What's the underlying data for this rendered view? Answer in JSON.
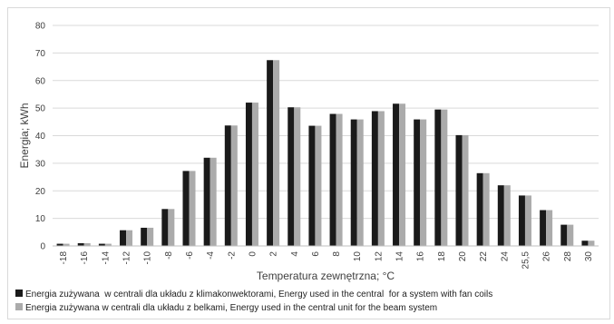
{
  "chart_data": {
    "type": "bar",
    "xlabel": "Temperatura zewnętrzna; °C",
    "ylabel": "Energia; kWh",
    "ylim": [
      0,
      80
    ],
    "yticks": [
      0,
      10,
      20,
      30,
      40,
      50,
      60,
      70,
      80
    ],
    "grid": true,
    "legend_position": "bottom",
    "categories": [
      "-18",
      "-16",
      "-14",
      "-12",
      "-10",
      "-8",
      "-6",
      "-4",
      "-2",
      "0",
      "2",
      "4",
      "6",
      "8",
      "10",
      "12",
      "14",
      "16",
      "18",
      "20",
      "22",
      "24",
      "25,5",
      "26",
      "28",
      "30"
    ],
    "series": [
      {
        "name": "Energia zużywana  w centrali dla układu z klimakonwektorami, Energy used in the central  for a system with fan coils",
        "color": "#1a1a1a",
        "values": [
          0.8,
          1.0,
          0.8,
          5.7,
          6.6,
          13.4,
          27.2,
          32.0,
          43.7,
          52.0,
          67.4,
          50.3,
          43.6,
          47.9,
          45.9,
          48.9,
          51.6,
          45.9,
          49.5,
          40.2,
          26.4,
          22.0,
          18.3,
          13.0,
          7.7,
          1.9
        ]
      },
      {
        "name": "Energia zużywana w centrali dla układu z belkami, Energy used in the central unit for the beam system",
        "color": "#ababab",
        "values": [
          0.8,
          1.0,
          0.8,
          5.7,
          6.6,
          13.4,
          27.2,
          32.0,
          43.7,
          52.0,
          67.4,
          50.3,
          43.6,
          47.9,
          45.9,
          48.9,
          51.6,
          45.9,
          49.5,
          40.2,
          26.4,
          22.0,
          18.3,
          13.0,
          7.7,
          1.9
        ]
      }
    ]
  }
}
